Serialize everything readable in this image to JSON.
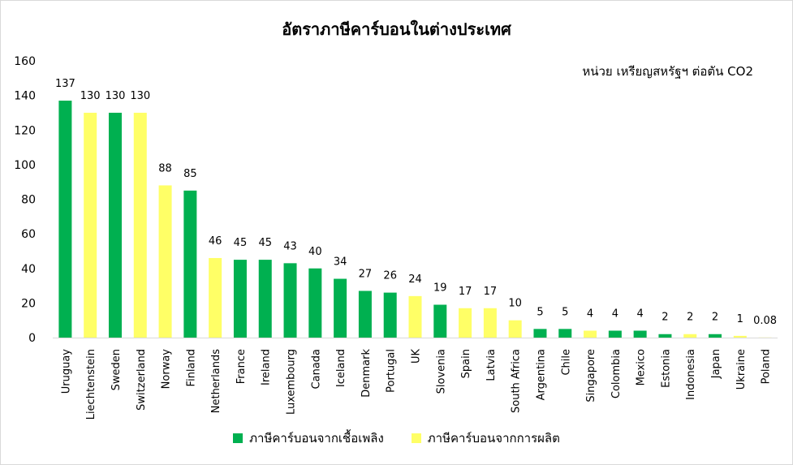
{
  "colors": {
    "fuel": "#00b050",
    "production": "#ffff66"
  },
  "chart_data": {
    "type": "bar",
    "title": "อัตราภาษีคาร์บอนในต่างประเทศ",
    "unit_note": "หน่วย เหรียญสหรัฐฯ ต่อตัน CO2",
    "xlabel": "",
    "ylabel": "",
    "ylim": [
      0,
      160
    ],
    "yticks": [
      0,
      20,
      40,
      60,
      80,
      100,
      120,
      140,
      160
    ],
    "grid": false,
    "legend_position": "bottom",
    "legend": [
      {
        "name": "ภาษีคาร์บอนจากเชื้อเพลิง",
        "color_key": "fuel"
      },
      {
        "name": "ภาษีคาร์บอนจากการผลิต",
        "color_key": "production"
      }
    ],
    "categories": [
      "Uruguay",
      "Liechtenstein",
      "Sweden",
      "Switzerland",
      "Norway",
      "Finland",
      "Netherlands",
      "France",
      "Ireland",
      "Luxembourg",
      "Canada",
      "Iceland",
      "Denmark",
      "Portugal",
      "UK",
      "Slovenia",
      "Spain",
      "Latvia",
      "South Africa",
      "Argentina",
      "Chile",
      "Singapore",
      "Colombia",
      "Mexico",
      "Estonia",
      "Indonesia",
      "Japan",
      "Ukraine",
      "Poland"
    ],
    "values": [
      137,
      130,
      130,
      130,
      88,
      85,
      46,
      45,
      45,
      43,
      40,
      34,
      27,
      26,
      24,
      19,
      17,
      17,
      10,
      5,
      5,
      4,
      4,
      4,
      2,
      2,
      2,
      1,
      0.08
    ],
    "value_labels": [
      "137",
      "130",
      "130",
      "130",
      "88",
      "85",
      "46",
      "45",
      "45",
      "43",
      "40",
      "34",
      "27",
      "26",
      "24",
      "19",
      "17",
      "17",
      "10",
      "5",
      "5",
      "4",
      "4",
      "4",
      "2",
      "2",
      "2",
      "1",
      "0.08"
    ],
    "bar_types": [
      "fuel",
      "production",
      "fuel",
      "production",
      "production",
      "fuel",
      "production",
      "fuel",
      "fuel",
      "fuel",
      "fuel",
      "fuel",
      "fuel",
      "fuel",
      "production",
      "fuel",
      "production",
      "production",
      "production",
      "fuel",
      "fuel",
      "production",
      "fuel",
      "fuel",
      "fuel",
      "production",
      "fuel",
      "production",
      "production"
    ]
  }
}
